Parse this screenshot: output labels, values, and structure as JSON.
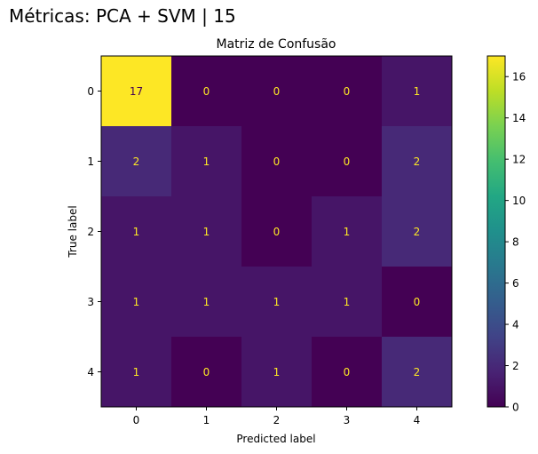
{
  "figure": {
    "suptitle": "Métricas: PCA + SVM | 15"
  },
  "chart_data": {
    "type": "heatmap",
    "title": "Matriz de Confusão",
    "xlabel": "Predicted label",
    "ylabel": "True label",
    "x_categories": [
      "0",
      "1",
      "2",
      "3",
      "4"
    ],
    "y_categories": [
      "0",
      "1",
      "2",
      "3",
      "4"
    ],
    "matrix": [
      [
        17,
        0,
        0,
        0,
        1
      ],
      [
        2,
        1,
        0,
        0,
        2
      ],
      [
        1,
        1,
        0,
        1,
        2
      ],
      [
        1,
        1,
        1,
        1,
        0
      ],
      [
        1,
        0,
        1,
        0,
        2
      ]
    ],
    "colormap": "viridis",
    "color_range": [
      0,
      17
    ],
    "colorbar_ticks": [
      0,
      2,
      4,
      6,
      8,
      10,
      12,
      14,
      16
    ],
    "cell_text_colors": {
      "low": "#fde725",
      "high": "#440154"
    }
  }
}
